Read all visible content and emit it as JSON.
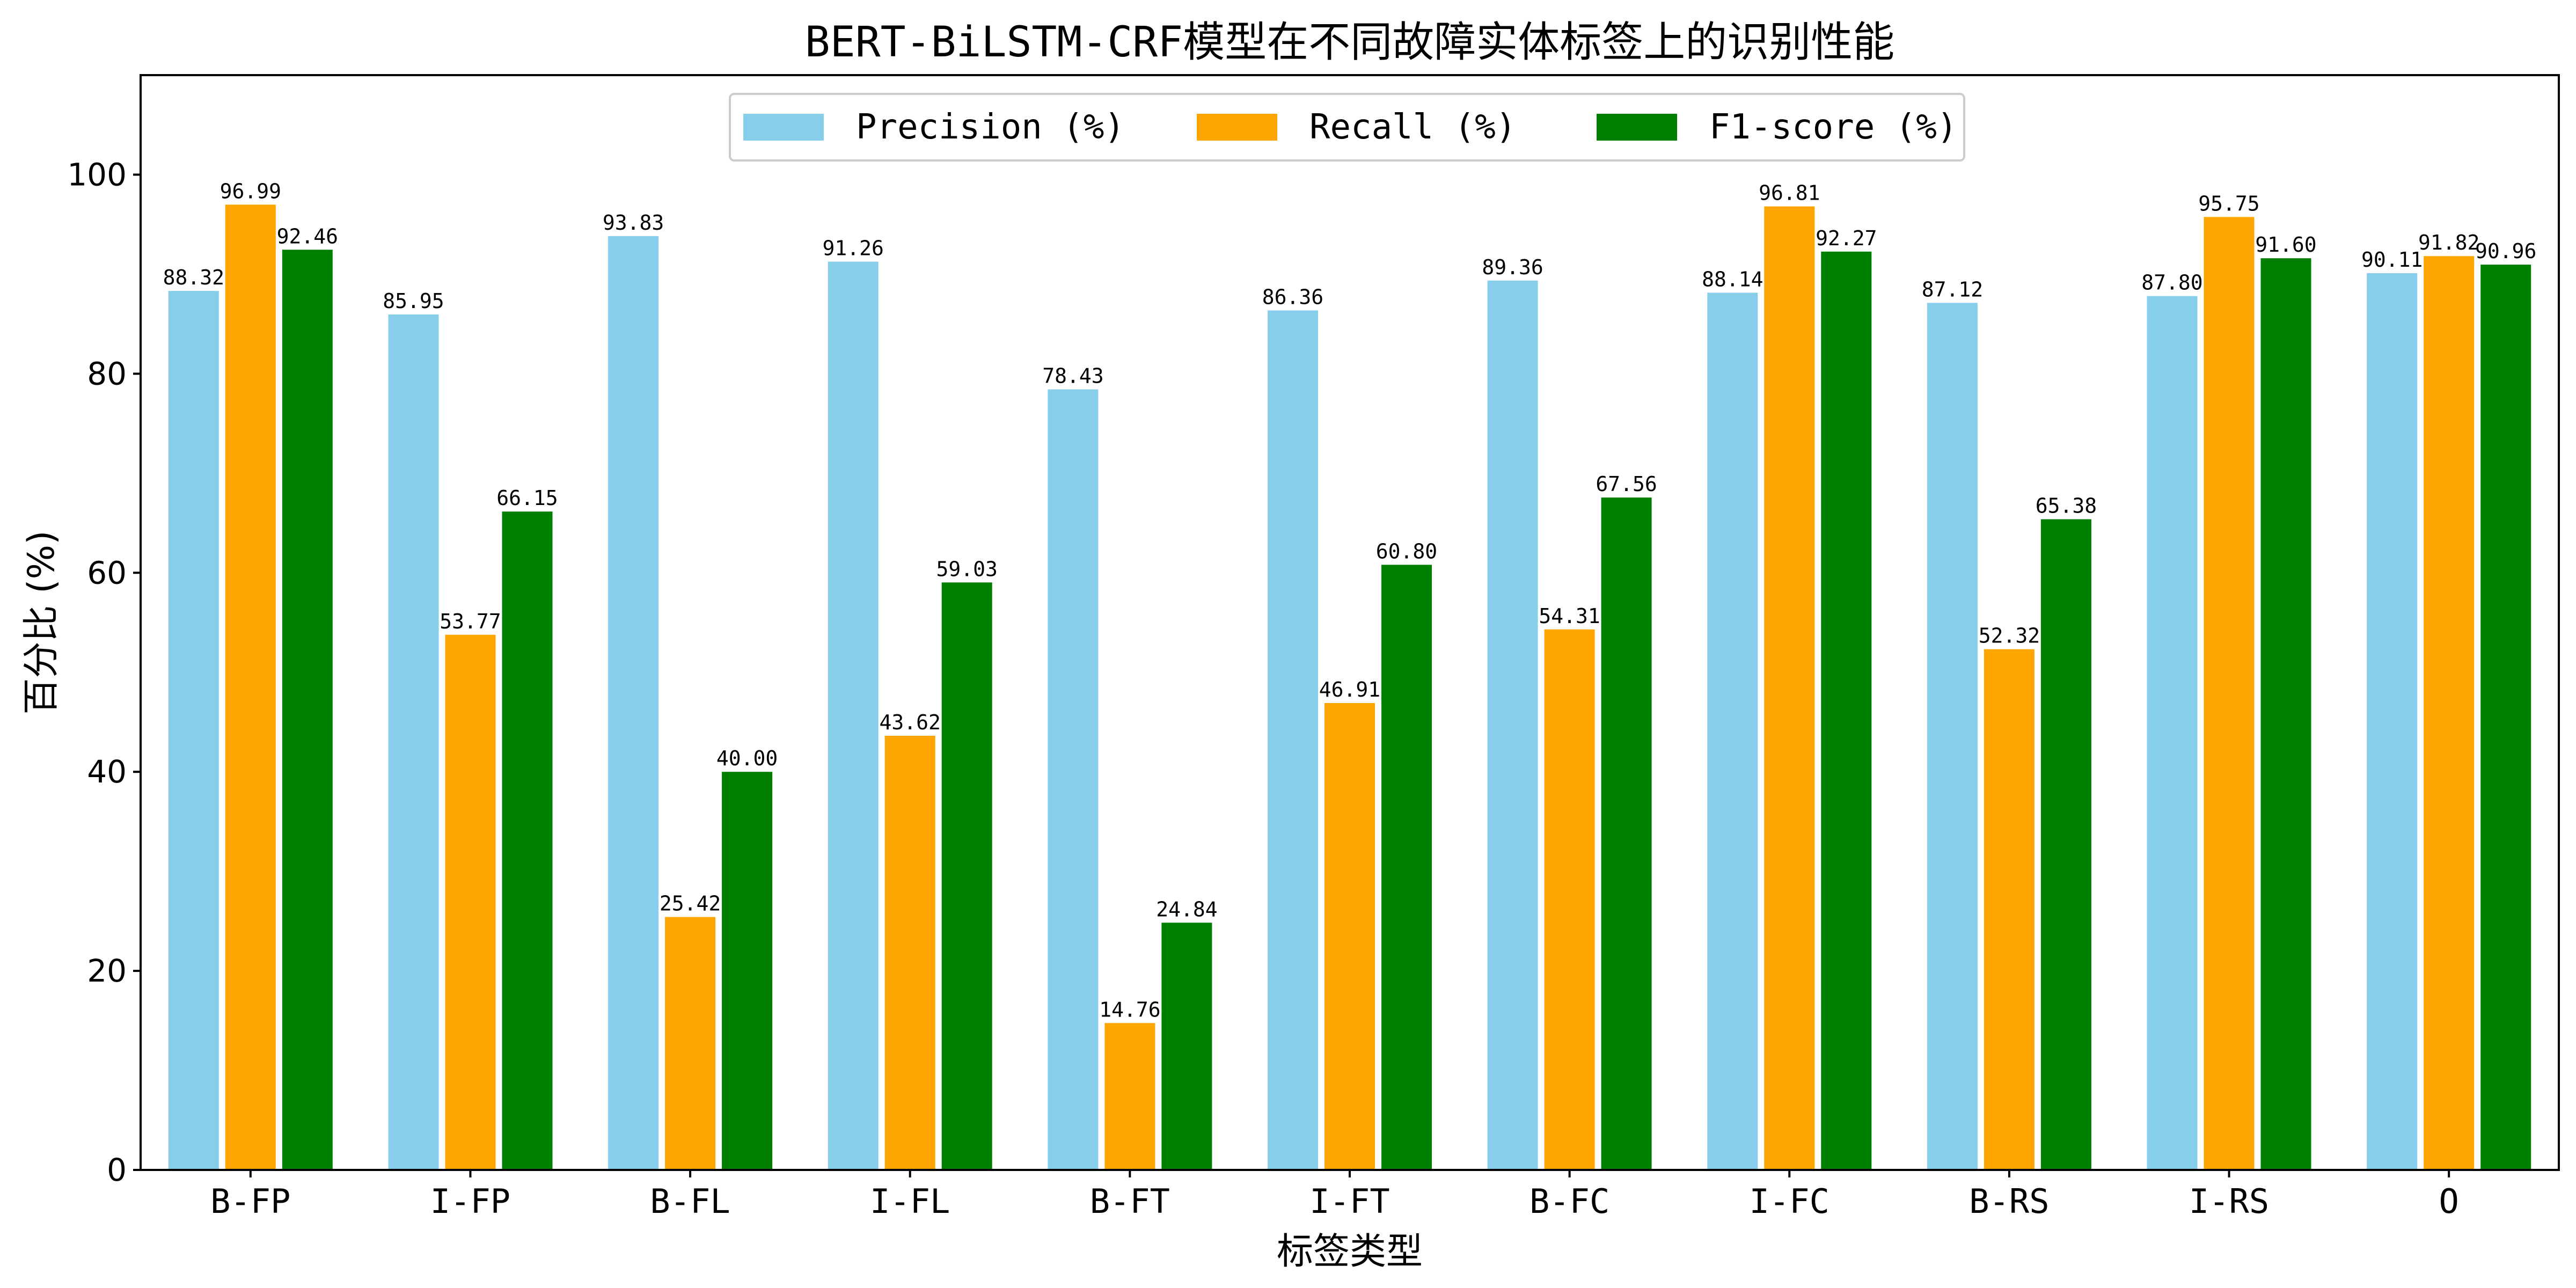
{
  "chart_data": {
    "type": "bar",
    "title": "BERT-BiLSTM-CRF模型在不同故障实体标签上的识别性能",
    "xlabel": "标签类型",
    "ylabel": "百分比 (%)",
    "ylim": [
      0,
      110
    ],
    "yticks": [
      0,
      20,
      40,
      60,
      80,
      100
    ],
    "grid": false,
    "legend_position": "top-center",
    "categories": [
      "B-FP",
      "I-FP",
      "B-FL",
      "I-FL",
      "B-FT",
      "I-FT",
      "B-FC",
      "I-FC",
      "B-RS",
      "I-RS",
      "O"
    ],
    "series": [
      {
        "name": "Precision (%)",
        "color": "#87CEEB",
        "values": [
          88.32,
          85.95,
          93.83,
          91.26,
          78.43,
          86.36,
          89.36,
          88.14,
          87.12,
          87.8,
          90.11
        ]
      },
      {
        "name": "Recall (%)",
        "color": "#FFA500",
        "values": [
          96.99,
          53.77,
          25.42,
          43.62,
          14.76,
          46.91,
          54.31,
          96.81,
          52.32,
          95.75,
          91.82
        ]
      },
      {
        "name": "F1-score (%)",
        "color": "#008000",
        "values": [
          92.46,
          66.15,
          40.0,
          59.03,
          24.84,
          60.8,
          67.56,
          92.27,
          65.38,
          91.6,
          90.96
        ]
      }
    ]
  }
}
